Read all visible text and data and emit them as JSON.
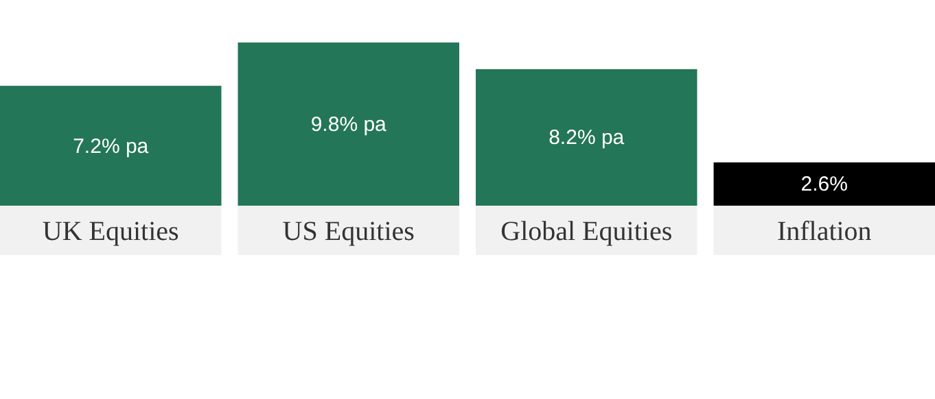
{
  "chart_data": {
    "type": "bar",
    "categories": [
      "UK Equities",
      "US Equities",
      "Global Equities",
      "Inflation"
    ],
    "values": [
      7.2,
      9.8,
      8.2,
      2.6
    ],
    "colors": [
      "#237657",
      "#237657",
      "#237657",
      "#000000"
    ],
    "value_labels": [
      "7.2% pa",
      "9.8% pa",
      "8.2% pa",
      "2.6%"
    ]
  }
}
